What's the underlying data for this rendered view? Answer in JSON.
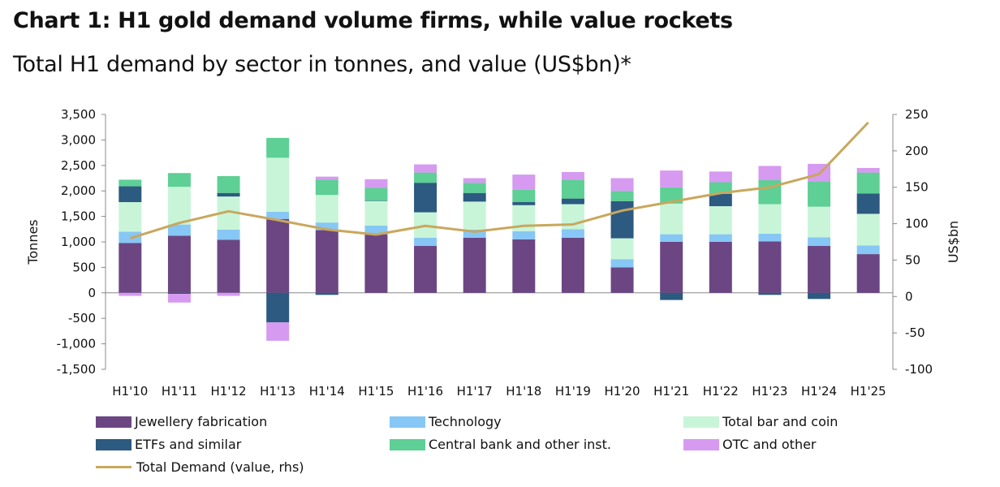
{
  "chart_data": {
    "type": "bar",
    "stacked": true,
    "title": "Chart 1: H1 gold demand volume firms, while value rockets",
    "subtitle": "Total H1 demand by sector in tonnes, and value (US$bn)*",
    "ylabel": "Tonnes",
    "y2label": "US$bn",
    "ylim": [
      -1500,
      3500
    ],
    "y2lim": [
      -100,
      250
    ],
    "yticks": [
      "3,500",
      "3,000",
      "2,500",
      "2,000",
      "1,500",
      "1,000",
      "500",
      "0",
      "-500",
      "-1,000",
      "-1,500"
    ],
    "yticks_values": [
      3500,
      3000,
      2500,
      2000,
      1500,
      1000,
      500,
      0,
      -500,
      -1000,
      -1500
    ],
    "y2ticks": [
      "250",
      "200",
      "150",
      "100",
      "50",
      "0",
      "-50",
      "-100"
    ],
    "y2ticks_values": [
      250,
      200,
      150,
      100,
      50,
      0,
      -50,
      -100
    ],
    "categories": [
      "H1'10",
      "H1'11",
      "H1'12",
      "H1'13",
      "H1'14",
      "H1'15",
      "H1'16",
      "H1'17",
      "H1'18",
      "H1'19",
      "H1'20",
      "H1'21",
      "H1'22",
      "H1'23",
      "H1'24",
      "H1'25"
    ],
    "series": [
      {
        "name": "Jewellery fabrication",
        "color": "#6b4683",
        "values": [
          980,
          1120,
          1040,
          1450,
          1230,
          1150,
          920,
          1080,
          1050,
          1080,
          500,
          1000,
          1000,
          1010,
          920,
          760
        ]
      },
      {
        "name": "Technology",
        "color": "#87c7f5",
        "values": [
          220,
          220,
          200,
          140,
          150,
          170,
          160,
          160,
          160,
          170,
          160,
          150,
          150,
          150,
          170,
          170
        ]
      },
      {
        "name": "Total bar and coin",
        "color": "#c8f5d8",
        "values": [
          580,
          740,
          650,
          1060,
          540,
          480,
          500,
          550,
          510,
          490,
          410,
          600,
          550,
          580,
          600,
          620
        ]
      },
      {
        "name": "ETFs and similar",
        "color": "#2c5a80",
        "values": [
          310,
          -20,
          70,
          -580,
          -40,
          10,
          580,
          170,
          60,
          110,
          730,
          -140,
          240,
          -40,
          -120,
          400
        ]
      },
      {
        "name": "Central bank and other inst.",
        "color": "#5ecf95",
        "values": [
          130,
          270,
          330,
          390,
          300,
          250,
          200,
          200,
          240,
          370,
          200,
          320,
          230,
          470,
          500,
          410
        ]
      },
      {
        "name": "OTC and other",
        "color": "#d69af0",
        "values": [
          -60,
          -170,
          -60,
          -360,
          60,
          170,
          160,
          90,
          300,
          150,
          250,
          330,
          210,
          280,
          340,
          90
        ]
      }
    ],
    "line_series": {
      "name": "Total Demand (value, rhs)",
      "color": "#c9a75d",
      "values": [
        80,
        101,
        117,
        105,
        92,
        85,
        97,
        89,
        97,
        99,
        118,
        130,
        142,
        150,
        168,
        239
      ]
    },
    "legend_position": "bottom",
    "grid": false
  },
  "legend": {
    "items": [
      {
        "label": "Jewellery fabrication",
        "color": "#6b4683"
      },
      {
        "label": "Technology",
        "color": "#87c7f5"
      },
      {
        "label": "Total bar and coin",
        "color": "#c8f5d8"
      },
      {
        "label": "ETFs and similar",
        "color": "#2c5a80"
      },
      {
        "label": "Central bank and other inst.",
        "color": "#5ecf95"
      },
      {
        "label": "OTC and other",
        "color": "#d69af0"
      },
      {
        "label": "Total Demand (value, rhs)",
        "color": "#c9a75d"
      }
    ]
  }
}
